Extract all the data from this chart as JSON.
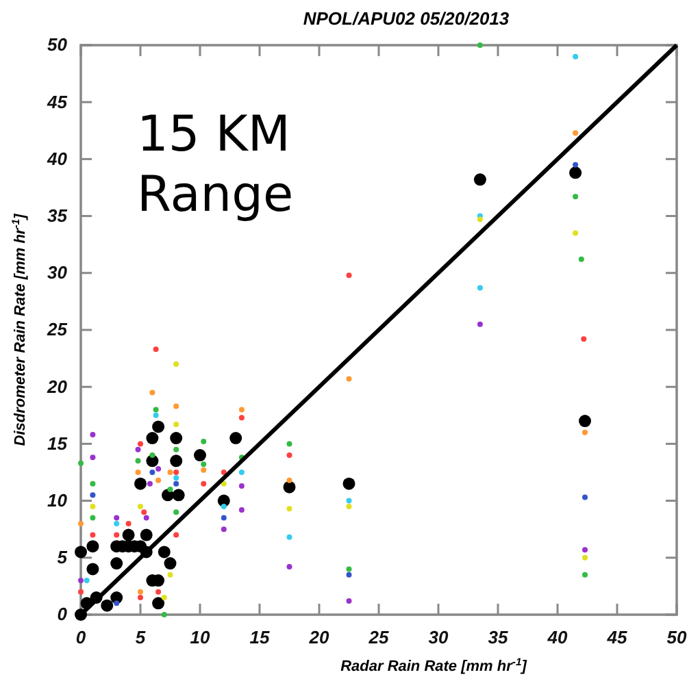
{
  "chart_data": {
    "type": "scatter",
    "title": "NPOL/APU02 05/20/2013",
    "xlabel": "Radar Rain Rate [mm hr$^{-1}$]",
    "ylabel": "Disdrometer Rain Rate [mm hr$^{-1}$]",
    "annotations": [
      "15 KM Range"
    ],
    "xlim": [
      0,
      50
    ],
    "ylim": [
      0,
      50
    ],
    "xticks": [
      0,
      5,
      10,
      15,
      20,
      25,
      30,
      35,
      40,
      45,
      50
    ],
    "yticks": [
      0,
      5,
      10,
      15,
      20,
      25,
      30,
      35,
      40,
      45,
      50
    ],
    "grid": false,
    "marker": "circle",
    "series": [
      {
        "x": [
          0,
          0,
          1.3,
          0.5,
          1,
          1,
          2.2,
          3,
          3,
          3,
          3.5,
          4,
          4,
          4.5,
          5,
          5,
          5.5,
          5.5,
          6,
          6,
          6,
          6.5,
          6.5,
          6.5,
          7,
          7.3,
          7.5,
          8,
          8,
          8.2,
          10,
          12,
          13,
          17.5,
          22.5,
          33.5,
          41.5,
          42.3
        ],
        "color": "#000000",
        "values": [
          0,
          5.5,
          1.5,
          1,
          4,
          6,
          0.8,
          6,
          4.5,
          1.5,
          6,
          7,
          6,
          6,
          11.5,
          6,
          7,
          5.5,
          15.5,
          13.5,
          3,
          16.5,
          3,
          1,
          5.5,
          10.5,
          4.5,
          13.5,
          15.5,
          10.5,
          14,
          10,
          15.5,
          11.2,
          11.5,
          38.2,
          38.8,
          17
        ]
      },
      {
        "x": [
          0,
          0,
          0,
          0,
          1,
          1,
          1,
          1,
          1,
          1,
          1,
          0.5,
          3,
          3,
          3,
          3,
          4,
          4.8,
          5,
          4.8,
          4.8,
          5,
          5.3,
          5.5,
          5,
          5,
          6,
          6.3,
          6.3,
          6.3,
          6,
          6,
          5.8,
          6.5,
          6.5,
          6.5,
          7,
          7,
          8,
          8,
          8,
          8,
          8,
          8,
          8,
          7.5,
          7.5,
          8,
          8,
          7.5,
          10.3,
          10.3,
          10.3,
          10.3,
          12,
          12,
          12,
          12,
          12,
          13.5,
          13.5,
          13.5,
          13.5,
          13.5,
          13.5,
          17.5,
          17.5,
          17.5,
          17.5,
          17.5,
          17.5,
          22.5,
          22.5,
          22.5,
          22.5,
          22.5,
          22.5,
          22.5,
          33.5,
          33.5,
          33.5,
          33.5,
          33.5,
          41.5,
          41.5,
          41.5,
          41.5,
          41.5,
          42,
          42.2,
          42.3,
          42.3,
          42.3,
          42.3,
          42.3
        ],
        "values": [
          13.3,
          8,
          3,
          2,
          15.8,
          13.8,
          11.5,
          10.5,
          9.5,
          8.5,
          7,
          3,
          8.5,
          8,
          1,
          7,
          8,
          14.5,
          15,
          13.5,
          12.5,
          9.5,
          9,
          8.5,
          2,
          1.5,
          19.5,
          23.3,
          18,
          17.5,
          14,
          12.5,
          11.5,
          12.8,
          11.8,
          2,
          0,
          1.5,
          22,
          18.3,
          16.7,
          14.5,
          12.5,
          12,
          11.5,
          12.5,
          11,
          9,
          7,
          3.5,
          15.2,
          12.7,
          11.5,
          13.2,
          11.5,
          9.5,
          8.5,
          7.5,
          12.5,
          18,
          17.3,
          13.8,
          12.5,
          11.3,
          9.2,
          15,
          14,
          11.8,
          9.3,
          6.8,
          4.2,
          29.8,
          20.7,
          10,
          9.5,
          4,
          3.5,
          1.2,
          50,
          35,
          34.7,
          28.7,
          25.5,
          49,
          42.3,
          39.5,
          36.7,
          33.5,
          31.2,
          24.2,
          16,
          10.3,
          5.7,
          5,
          3.5
        ],
        "colors": [
          "#33bb44",
          "#ff9933",
          "#9933cc",
          "#ff4040",
          "#9933cc",
          "#9933cc",
          "#33bb44",
          "#3355cc",
          "#e0e020",
          "#33bb44",
          "#ff4040",
          "#33ccee",
          "#9933cc",
          "#33ccee",
          "#3355cc",
          "#ff4040",
          "#ff4040",
          "#9933cc",
          "#ff4040",
          "#33bb44",
          "#ff9933",
          "#e0e020",
          "#ff4040",
          "#9933cc",
          "#ff9933",
          "#ff4040",
          "#ff9933",
          "#ff4040",
          "#33bb44",
          "#33ccee",
          "#33bb44",
          "#3355cc",
          "#9933cc",
          "#9933cc",
          "#ff9933",
          "#ff4040",
          "#33bb44",
          "#e0e020",
          "#e0e020",
          "#ff9933",
          "#e0e020",
          "#33bb44",
          "#ff4040",
          "#33ccee",
          "#3355cc",
          "#ff9933",
          "#33bb44",
          "#33bb44",
          "#ff4040",
          "#e0e020",
          "#33bb44",
          "#ff9933",
          "#ff4040",
          "#33bb44",
          "#e0e020",
          "#33ccee",
          "#3355cc",
          "#9933cc",
          "#ff4040",
          "#ff9933",
          "#ff4040",
          "#33bb44",
          "#33ccee",
          "#9933cc",
          "#9933cc",
          "#33bb44",
          "#ff4040",
          "#ff9933",
          "#e0e020",
          "#33ccee",
          "#9933cc",
          "#ff4040",
          "#ff9933",
          "#33ccee",
          "#e0e020",
          "#33bb44",
          "#3355cc",
          "#9933cc",
          "#33bb44",
          "#33ccee",
          "#e0e020",
          "#33ccee",
          "#9933cc",
          "#33ccee",
          "#ff9933",
          "#3355cc",
          "#33bb44",
          "#e0e020",
          "#33bb44",
          "#ff4040",
          "#ff9933",
          "#3355cc",
          "#9933cc",
          "#e0e020",
          "#33bb44"
        ]
      },
      {
        "type": "line",
        "marker": "none",
        "x": [
          0,
          50
        ],
        "color": "#000000",
        "values": [
          0,
          50
        ]
      }
    ]
  }
}
